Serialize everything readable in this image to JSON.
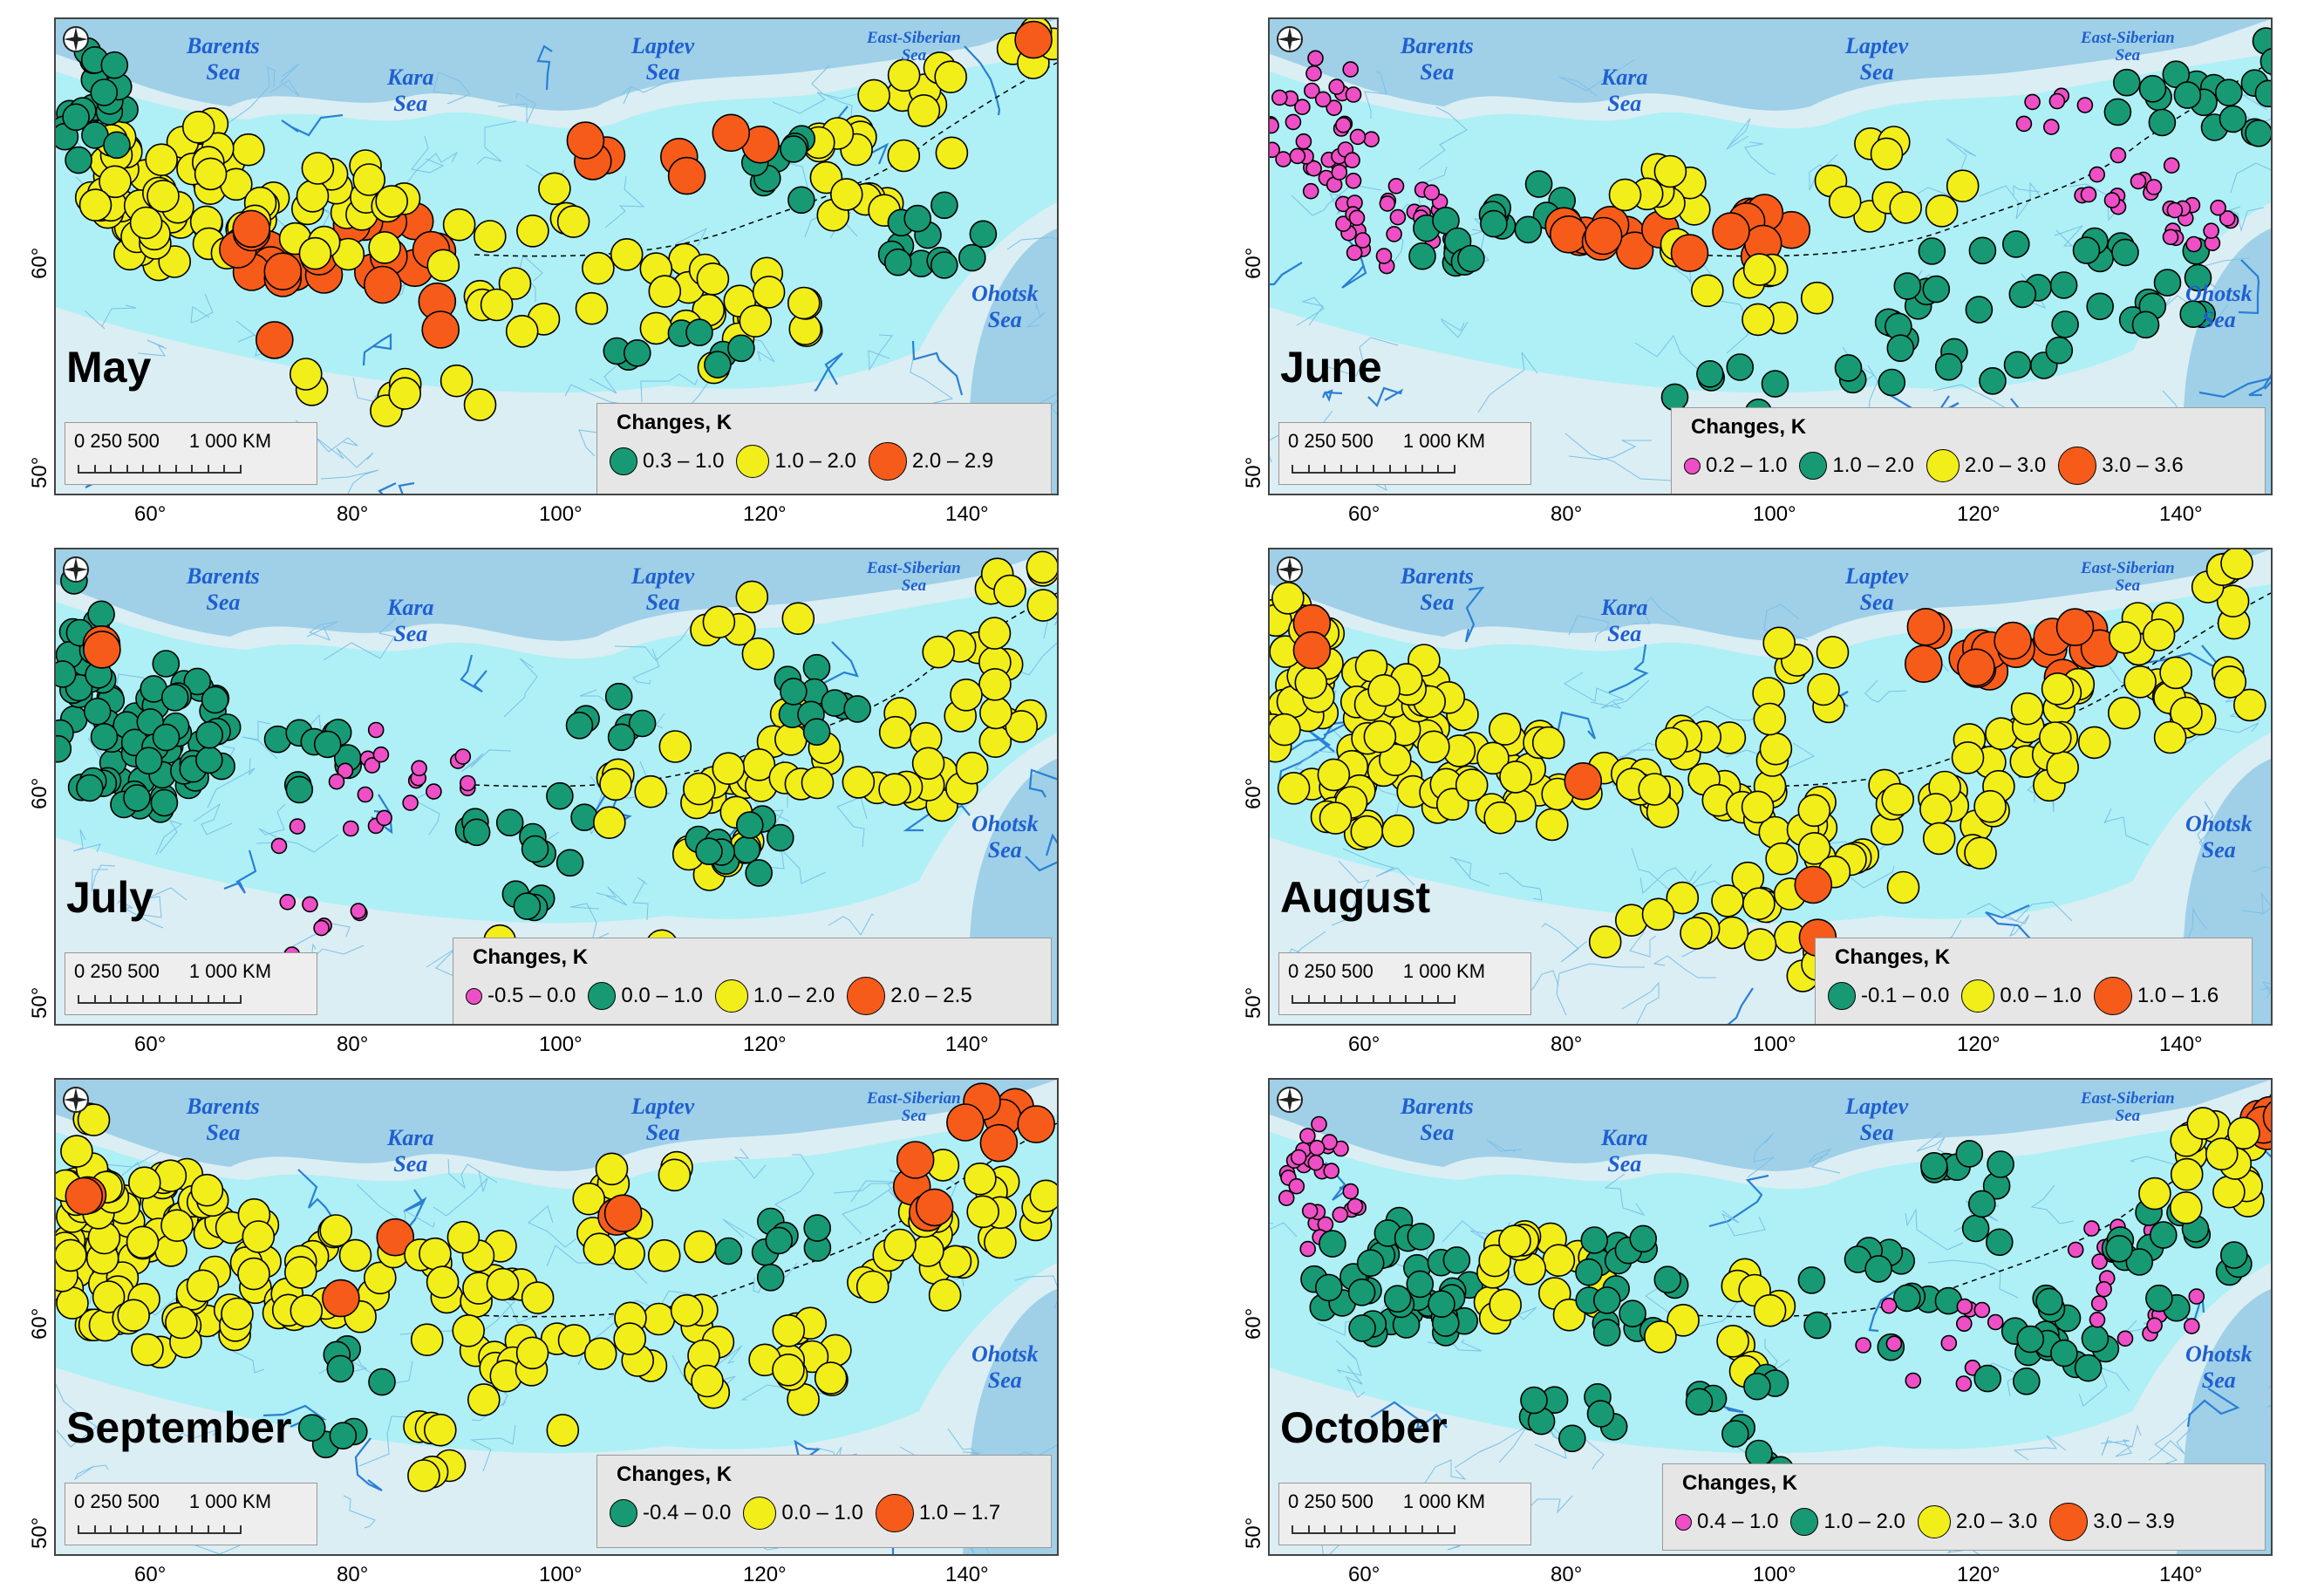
{
  "colors": {
    "pink": "#ee4fc6",
    "green": "#179a74",
    "yellow": "#f2ee1a",
    "red": "#f75b1a",
    "sea": "#9fd0e8",
    "land": "#dbeef3",
    "basin": "#aef0f5"
  },
  "seas": {
    "barents": "Barents\nSea",
    "kara": "Kara\nSea",
    "laptev": "Laptev\nSea",
    "east_siberian": "East-Siberian\nSea",
    "ohotsk": "Ohotsk\nSea"
  },
  "scale": {
    "ticks": "0  250 500",
    "km": "1 000 KM"
  },
  "legend_title": "Changes, K",
  "x_ticks": [
    "60°",
    "80°",
    "100°",
    "120°",
    "140°"
  ],
  "y_ticks": [
    "60°",
    "50°"
  ],
  "panels": [
    {
      "id": "may",
      "month": "May",
      "legend": [
        {
          "color": "green",
          "label": "0.3 – 1.0"
        },
        {
          "color": "yellow",
          "label": "1.0 – 2.0"
        },
        {
          "color": "red",
          "label": "2.0 – 2.9"
        }
      ]
    },
    {
      "id": "june",
      "month": "June",
      "legend": [
        {
          "color": "pink",
          "label": "0.2 – 1.0"
        },
        {
          "color": "green",
          "label": "1.0 – 2.0"
        },
        {
          "color": "yellow",
          "label": "2.0 – 3.0"
        },
        {
          "color": "red",
          "label": "3.0 – 3.6"
        }
      ]
    },
    {
      "id": "july",
      "month": "July",
      "legend": [
        {
          "color": "pink",
          "label": "-0.5 – 0.0"
        },
        {
          "color": "green",
          "label": "0.0 – 1.0"
        },
        {
          "color": "yellow",
          "label": "1.0 – 2.0"
        },
        {
          "color": "red",
          "label": "2.0 – 2.5"
        }
      ]
    },
    {
      "id": "august",
      "month": "August",
      "legend": [
        {
          "color": "green",
          "label": "-0.1 – 0.0"
        },
        {
          "color": "yellow",
          "label": "0.0 – 1.0"
        },
        {
          "color": "red",
          "label": "1.0 – 1.6"
        }
      ]
    },
    {
      "id": "september",
      "month": "September",
      "legend": [
        {
          "color": "green",
          "label": "-0.4 – 0.0"
        },
        {
          "color": "yellow",
          "label": "0.0 – 1.0"
        },
        {
          "color": "red",
          "label": "1.0 – 1.7"
        }
      ]
    },
    {
      "id": "october",
      "month": "October",
      "legend": [
        {
          "color": "pink",
          "label": "0.4 – 1.0"
        },
        {
          "color": "green",
          "label": "1.0 – 2.0"
        },
        {
          "color": "yellow",
          "label": "2.0 – 3.0"
        },
        {
          "color": "red",
          "label": "3.0 – 3.9"
        }
      ]
    }
  ]
}
